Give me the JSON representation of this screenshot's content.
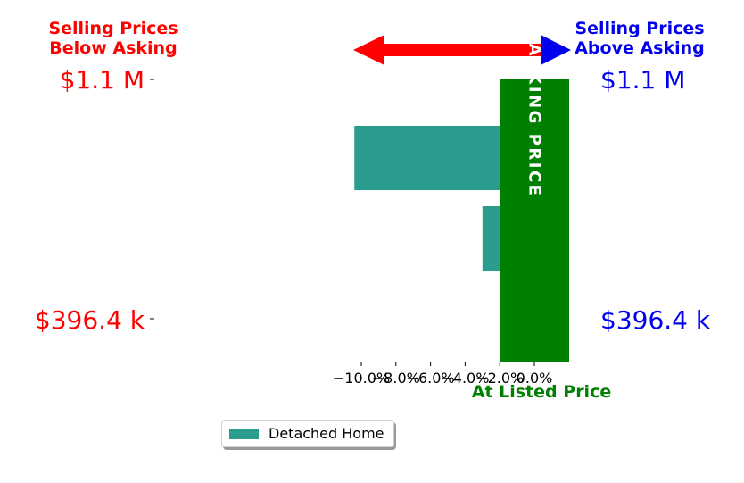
{
  "chart_data": {
    "type": "bar",
    "orientation": "horizontal",
    "categories": [
      "$1.1 M",
      "",
      "$396.4 k"
    ],
    "series": [
      {
        "name": "Detached Home",
        "values": [
          -10.4,
          -3.0,
          1.2
        ]
      }
    ],
    "xlim": [
      -11.0,
      1.3
    ],
    "x_ticks": [
      -10,
      -8,
      -6,
      -4,
      -2,
      0
    ],
    "x_tick_labels": [
      "−10.0%",
      "−8.0%",
      "−6.0%",
      "−4.0%",
      "−2.0%",
      "0.0%"
    ],
    "top_left_value": "$1.1 M",
    "bottom_left_value": "$396.4 k",
    "top_right_value": "$1.1 M",
    "bottom_right_value": "$396.4 k",
    "below_label": [
      "Selling Prices",
      "Below Asking"
    ],
    "above_label": [
      "Selling Prices",
      "Above Asking"
    ],
    "asking_price_text": "ASKING PRICE",
    "at_listed_price": "At Listed Price",
    "legend_position": "lower-center",
    "grid": false
  },
  "colors": {
    "bar": "#2a9d8f",
    "below": "#ff0000",
    "above": "#0000ee",
    "asking": "#008000",
    "text": "#000000"
  }
}
